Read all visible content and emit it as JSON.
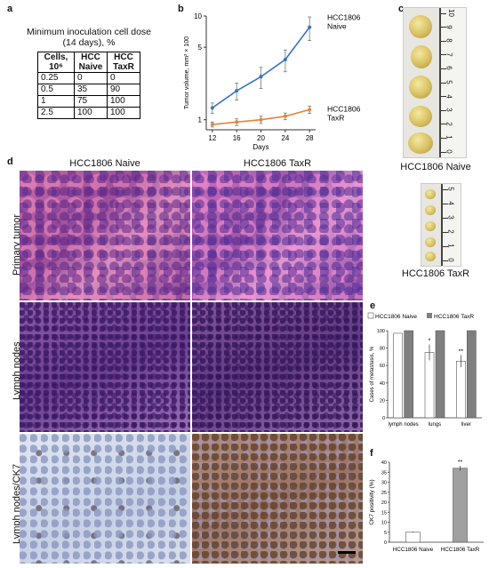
{
  "panels": {
    "a": {
      "label": "a",
      "title_line1": "Minimum inoculation cell dose",
      "title_line2": "(14 days), %",
      "headers": [
        "Cells, 10⁶",
        "HCC Naive",
        "HCC TaxR"
      ],
      "rows": [
        [
          "0.25",
          "0",
          "0"
        ],
        [
          "0.5",
          "35",
          "90"
        ],
        [
          "1",
          "75",
          "100"
        ],
        [
          "2.5",
          "100",
          "100"
        ]
      ]
    },
    "b": {
      "label": "b"
    },
    "c": {
      "label": "c",
      "caption_naive": "HCC1806 Naive",
      "caption_taxr": "HCC1806 TaxR",
      "ruler_naive": [
        "0",
        "1",
        "2",
        "3",
        "4",
        "5",
        "6",
        "7",
        "8",
        "9",
        "10"
      ],
      "ruler_taxr": [
        "0",
        "1",
        "2",
        "3",
        "4",
        "5"
      ]
    },
    "d": {
      "label": "d",
      "col_naive": "HCC1806 Naive",
      "col_taxr": "HCC1806 TaxR",
      "row1": "Primary  tumor",
      "row2": "Lymph nodes",
      "row3": "Lymph nodes/CK7"
    },
    "e": {
      "label": "e"
    },
    "f": {
      "label": "f"
    }
  },
  "chart_data": [
    {
      "panel": "b",
      "type": "line",
      "xlabel": "Days",
      "ylabel": "Tumor volume, mm³ × 100",
      "yscale": "log",
      "ylim": [
        0.8,
        10
      ],
      "xlim": [
        11,
        29
      ],
      "xticks": [
        12,
        16,
        20,
        24,
        28
      ],
      "yticks": [
        1,
        5,
        10
      ],
      "series": [
        {
          "name": "HCC1806 Naive",
          "color": "#3a72c4",
          "x": [
            12,
            16,
            20,
            24,
            28
          ],
          "y": [
            1.3,
            1.9,
            2.6,
            3.8,
            7.8
          ],
          "err": [
            0.15,
            0.35,
            0.6,
            0.9,
            2.0
          ]
        },
        {
          "name": "HCC1806 TaxR",
          "color": "#e8823a",
          "x": [
            12,
            16,
            20,
            24,
            28
          ],
          "y": [
            0.9,
            0.95,
            1.0,
            1.08,
            1.25
          ],
          "err": [
            0.05,
            0.07,
            0.08,
            0.08,
            0.1
          ]
        }
      ],
      "series_labels": [
        [
          "HCC1806",
          "Naive"
        ],
        [
          "HCC1806",
          "TaxR"
        ]
      ]
    },
    {
      "panel": "e",
      "type": "bar",
      "ylabel": "Cases of metastasis, %",
      "ylim": [
        0,
        100
      ],
      "yticks": [
        0,
        20,
        40,
        60,
        80,
        100
      ],
      "categories": [
        "lymph nodes",
        "lungs",
        "liver"
      ],
      "series": [
        {
          "name": "HCC1806 Naive",
          "color": "#ffffff",
          "values": [
            97,
            75,
            65
          ],
          "err": [
            0,
            9,
            7
          ]
        },
        {
          "name": "HCC1806 TaxR",
          "color": "#7f7f7f",
          "values": [
            100,
            100,
            100
          ],
          "err": [
            0,
            0,
            0
          ]
        }
      ],
      "annotations": [
        "",
        "*",
        "**"
      ]
    },
    {
      "panel": "f",
      "type": "bar",
      "ylabel": "CK7 positivity (%)",
      "ylim": [
        0,
        40
      ],
      "yticks": [
        0,
        5,
        10,
        15,
        20,
        25,
        30,
        35,
        40
      ],
      "categories": [
        "HCC1806 Naive",
        "HCC1806 TaxR"
      ],
      "values": [
        5,
        37
      ],
      "err": [
        0.3,
        1.2
      ],
      "colors": [
        "#ffffff",
        "#a0a0a0"
      ],
      "annotations": [
        "",
        "**"
      ]
    }
  ]
}
